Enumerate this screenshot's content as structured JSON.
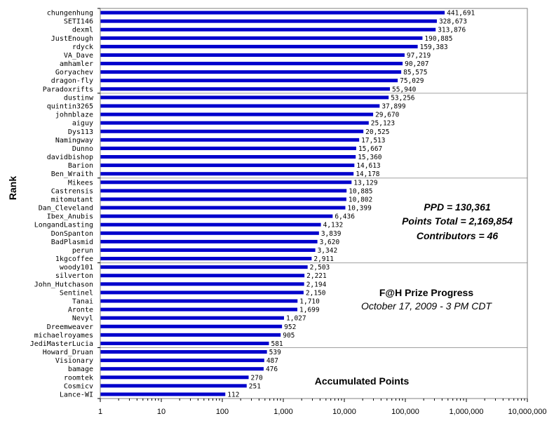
{
  "chart_data": {
    "type": "bar",
    "orientation": "horizontal",
    "x_scale": "log",
    "xlim": [
      1,
      10000000
    ],
    "x_ticks": [
      "1",
      "10",
      "100",
      "1,000",
      "10,000",
      "100,000",
      "1,000,000",
      "10,000,000"
    ],
    "ylabel": "Rank",
    "bar_color": "#0000cc",
    "group_separators": "every 10 contributors",
    "categories": [
      "chungenhung",
      "SETI146",
      "dexml",
      "JustEnough",
      "rdyck",
      "VA_Dave",
      "amhamler",
      "Goryachev",
      "dragon-fly",
      "Paradoxrifts",
      "dustinw",
      "quintin3265",
      "johnblaze",
      "aiguy",
      "Dys113",
      "Namingway",
      "Dunno",
      "davidbishop",
      "Barion",
      "Ben_Wraith",
      "Mikees",
      "Castrensis",
      "mitomutant",
      "Dan_Cleveland",
      "Ibex_Anubis",
      "LongandLasting",
      "DonSpanton",
      "BadPlasmid",
      "perun",
      "1kgcoffee",
      "woody101",
      "silverton",
      "John_Hutchason",
      "Sentinel",
      "Tanai",
      "Aronte",
      "Nevyl",
      "Dreemweaver",
      "michaelroyames",
      "JediMasterLucia",
      "Howard_Druan",
      "Visionary",
      "bamage",
      "roomtek",
      "Cosmicv",
      "Lance-WI"
    ],
    "values": [
      441691,
      328673,
      313876,
      190885,
      159383,
      97219,
      90207,
      85575,
      75029,
      55940,
      53256,
      37899,
      29670,
      25123,
      20525,
      17513,
      15667,
      15360,
      14613,
      14178,
      13129,
      10885,
      10802,
      10399,
      6436,
      4132,
      3839,
      3620,
      3342,
      2911,
      2503,
      2221,
      2194,
      2150,
      1710,
      1699,
      1027,
      952,
      905,
      581,
      539,
      487,
      476,
      270,
      251,
      112
    ],
    "value_labels": [
      "441,691",
      "328,673",
      "313,876",
      "190,885",
      "159,383",
      "97,219",
      "90,207",
      "85,575",
      "75,029",
      "55,940",
      "53,256",
      "37,899",
      "29,670",
      "25,123",
      "20,525",
      "17,513",
      "15,667",
      "15,360",
      "14,613",
      "14,178",
      "13,129",
      "10,885",
      "10,802",
      "10,399",
      "6,436",
      "4,132",
      "3,839",
      "3,620",
      "3,342",
      "2,911",
      "2,503",
      "2,221",
      "2,194",
      "2,150",
      "1,710",
      "1,699",
      "1,027",
      "952",
      "905",
      "581",
      "539",
      "487",
      "476",
      "270",
      "251",
      "112"
    ],
    "annotations": {
      "ppd": "PPD = 130,361",
      "points_total": "Points Total = 2,169,854",
      "contributors": "Contributors = 46",
      "title": "F@H Prize Progress",
      "subtitle": "October 17, 2009 - 3 PM CDT",
      "xaxis_note": "Accumulated Points"
    }
  }
}
